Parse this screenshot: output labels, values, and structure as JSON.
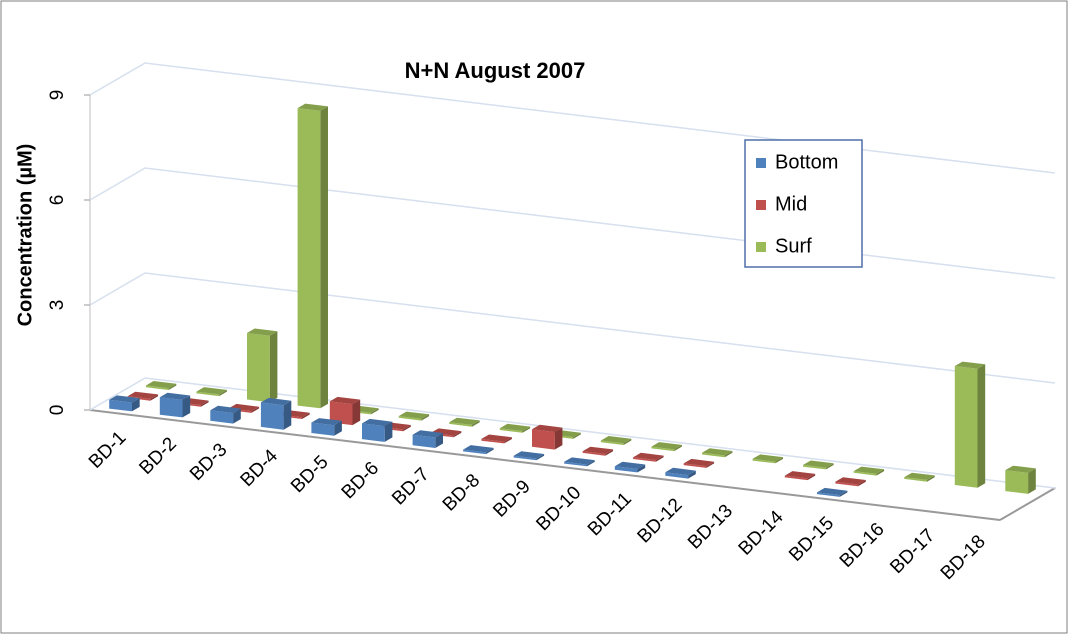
{
  "chart_data": {
    "type": "bar3d",
    "title": "N+N  August 2007",
    "y_label": "Concentration (µM)",
    "categories": [
      "BD-1",
      "BD-2",
      "BD-3",
      "BD-4",
      "BD-5",
      "BD-6",
      "BD-7",
      "BD-8",
      "BD-9",
      "BD-10",
      "BD-11",
      "BD-12",
      "BD-13",
      "BD-14",
      "BD-15",
      "BD-16",
      "BD-17",
      "BD-18"
    ],
    "series": [
      {
        "name": "Bottom",
        "color": "#4f81bd",
        "values": [
          0.25,
          0.5,
          0.3,
          0.7,
          0.3,
          0.45,
          0.3,
          0.05,
          0.05,
          0.05,
          0.1,
          0.1,
          null,
          null,
          0.05,
          null,
          null,
          null
        ]
      },
      {
        "name": "Mid",
        "color": "#c0504d",
        "values": [
          0.05,
          0.05,
          0.05,
          0.05,
          0.6,
          0.05,
          0.05,
          0.05,
          0.5,
          0.05,
          0.05,
          0.05,
          null,
          0.05,
          0.05,
          null,
          null,
          null
        ]
      },
      {
        "name": "Surf",
        "color": "#9bbb59",
        "values": [
          0.05,
          0.05,
          1.9,
          8.5,
          0.05,
          0.05,
          0.05,
          0.05,
          0.05,
          0.05,
          0.05,
          0.05,
          0.05,
          0.05,
          0.05,
          0.05,
          3.4,
          0.6
        ]
      }
    ],
    "ylim": [
      0,
      9
    ],
    "yticks": [
      0,
      3,
      6,
      9
    ],
    "grid": true,
    "legend": "upper right"
  }
}
